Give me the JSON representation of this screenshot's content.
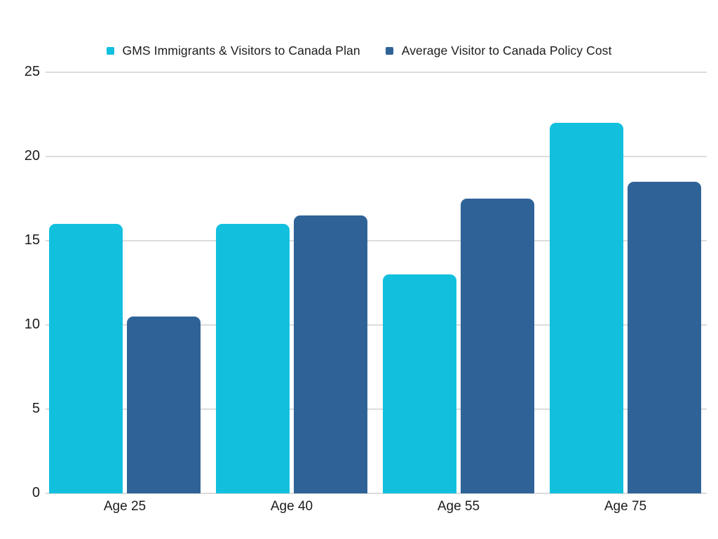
{
  "chart_data": {
    "type": "bar",
    "title": "",
    "categories": [
      "Age 25",
      "Age 40",
      "Age 55",
      "Age 75"
    ],
    "series": [
      {
        "name": "GMS Immigrants & Visitors to Canada Plan",
        "color": "#12c0de",
        "values": [
          16,
          16,
          13,
          22
        ]
      },
      {
        "name": "Average Visitor to Canada Policy Cost",
        "color": "#2f6398",
        "values": [
          10.5,
          16.5,
          17.5,
          18.5
        ]
      }
    ],
    "ylim": [
      0,
      25
    ],
    "yticks": [
      0,
      5,
      10,
      15,
      20,
      25
    ],
    "grid": true,
    "legend_position": "top",
    "colors": {
      "background": "#ffffff",
      "gridline": "#dcdcdc",
      "text": "#1c1c1c"
    }
  }
}
